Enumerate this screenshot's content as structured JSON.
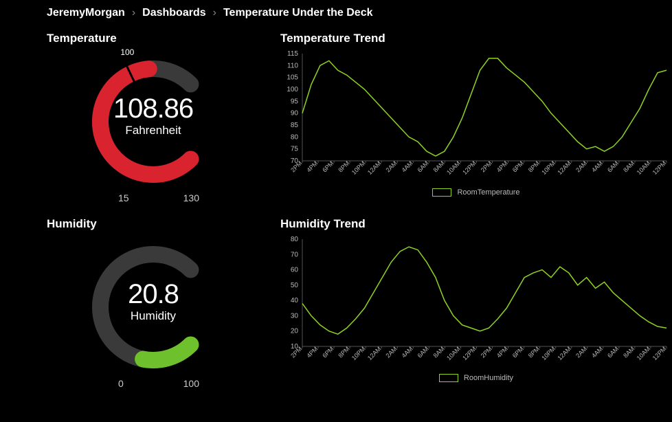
{
  "breadcrumb": {
    "items": [
      "JeremyMorgan",
      "Dashboards",
      "Temperature Under the Deck"
    ],
    "separator": "›"
  },
  "colors": {
    "background": "#000000",
    "text": "#ffffff",
    "muted": "#bbbbbb",
    "gauge_track": "#3a3a3a",
    "gauge_red": "#d9232e",
    "gauge_green": "#6ec12c",
    "line_green": "#8ed421",
    "axis": "#555555"
  },
  "temperature_gauge": {
    "title": "Temperature",
    "type": "gauge",
    "value": 108.86,
    "value_display": "108.86",
    "unit": "Fahrenheit",
    "min": 15,
    "max": 130,
    "min_label": "15",
    "max_label": "130",
    "threshold": 100,
    "threshold_label": "100",
    "fill_color": "#d9232e",
    "track_color": "#3a3a3a",
    "value_fontsize": 40,
    "unit_fontsize": 17,
    "start_angle_deg": 135,
    "end_angle_deg": 405,
    "stroke_width": 24
  },
  "humidity_gauge": {
    "title": "Humidity",
    "type": "gauge",
    "value": 20.8,
    "value_display": "20.8",
    "unit": "Humidity",
    "min": 0,
    "max": 100,
    "min_label": "0",
    "max_label": "100",
    "fill_color": "#6ec12c",
    "track_color": "#3a3a3a",
    "value_fontsize": 40,
    "unit_fontsize": 17,
    "start_angle_deg": 135,
    "end_angle_deg": 405,
    "stroke_width": 24
  },
  "temperature_chart": {
    "title": "Temperature Trend",
    "type": "line",
    "series_name": "RoomTemperature",
    "line_color": "#8ed421",
    "line_width": 1.5,
    "ylim": [
      70,
      115
    ],
    "ytick_step": 5,
    "yticks": [
      70,
      75,
      80,
      85,
      90,
      95,
      100,
      105,
      110,
      115
    ],
    "x_labels": [
      "2PM",
      "4PM",
      "6PM",
      "8PM",
      "10PM",
      "12AM",
      "2AM",
      "4AM",
      "6AM",
      "8AM",
      "10AM",
      "12PM",
      "2PM",
      "4PM",
      "6PM",
      "8PM",
      "10PM",
      "12AM",
      "2AM",
      "4AM",
      "6AM",
      "8AM",
      "10AM",
      "12PM"
    ],
    "values": [
      90,
      102,
      110,
      112,
      108,
      106,
      103,
      100,
      96,
      92,
      88,
      84,
      80,
      78,
      74,
      72,
      74,
      80,
      88,
      98,
      108,
      113,
      113,
      109,
      106,
      103,
      99,
      95,
      90,
      86,
      82,
      78,
      75,
      76,
      74,
      76,
      80,
      86,
      92,
      100,
      107,
      108
    ],
    "background_color": "#000000",
    "axis_color": "#555555",
    "tick_fontsize": 10
  },
  "humidity_chart": {
    "title": "Humidity Trend",
    "type": "line",
    "series_name": "RoomHumidity",
    "line_color": "#8ed421",
    "line_width": 1.5,
    "ylim": [
      10,
      80
    ],
    "ytick_step": 10,
    "yticks": [
      10,
      20,
      30,
      40,
      50,
      60,
      70,
      80
    ],
    "x_labels": [
      "2PM",
      "4PM",
      "6PM",
      "8PM",
      "10PM",
      "12AM",
      "2AM",
      "4AM",
      "6AM",
      "8AM",
      "10AM",
      "12PM",
      "2PM",
      "4PM",
      "6PM",
      "8PM",
      "10PM",
      "12AM",
      "2AM",
      "4AM",
      "6AM",
      "8AM",
      "10AM",
      "12PM"
    ],
    "values": [
      38,
      30,
      24,
      20,
      18,
      22,
      28,
      35,
      45,
      55,
      65,
      72,
      75,
      73,
      65,
      55,
      40,
      30,
      24,
      22,
      20,
      22,
      28,
      35,
      45,
      55,
      58,
      60,
      55,
      62,
      58,
      50,
      55,
      48,
      52,
      45,
      40,
      35,
      30,
      26,
      23,
      22
    ],
    "background_color": "#000000",
    "axis_color": "#555555",
    "tick_fontsize": 10
  }
}
